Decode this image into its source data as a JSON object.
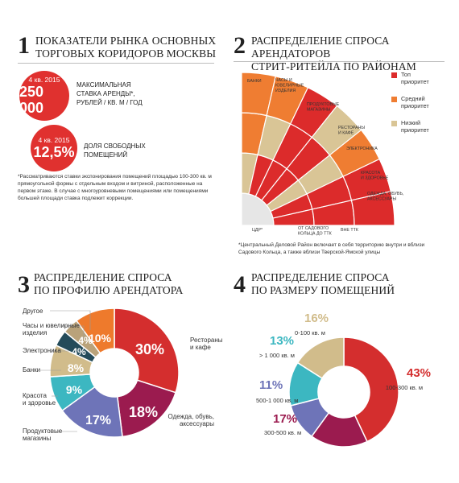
{
  "sections": [
    {
      "number": "1",
      "title": [
        "ПОКАЗАТЕЛИ РЫНКА ОСНОВНЫХ",
        "ТОРГОВЫХ КОРИДОРОВ МОСКВЫ"
      ]
    },
    {
      "number": "2",
      "title": [
        "РАСПРЕДЕЛЕНИЕ СПРОСА АРЕНДАТОРОВ",
        "СТРИТ-РИТЕЙЛА ПО РАЙОНАМ"
      ]
    },
    {
      "number": "3",
      "title": [
        "РАСПРЕДЕЛЕНИЕ СПРОСА",
        "ПО ПРОФИЛЮ АРЕНДАТОРА"
      ]
    },
    {
      "number": "4",
      "title": [
        "РАСПРЕДЕЛЕНИЕ СПРОСА",
        "ПО РАЗМЕРУ ПОМЕЩЕНИЙ"
      ]
    }
  ],
  "indicators": [
    {
      "period": "4 кв. 2015",
      "value": "250 000",
      "label": [
        "МАКСИМАЛЬНАЯ",
        "СТАВКА АРЕНДЫ*,",
        "РУБЛЕЙ / КВ. М / ГОД"
      ]
    },
    {
      "period": "4 кв. 2015",
      "value": "12,5%",
      "label": [
        "ДОЛЯ СВОБОДНЫХ",
        "ПОМЕЩЕНИЙ"
      ]
    }
  ],
  "indicator_note": [
    "*Рассматриваются ставки экспонирования помещений площадью 100-300 кв. м",
    "прямоугольной формы с отдельным входом и витриной, расположенные на",
    "первом этаже. В случае с многоуровневыми помещениями или помещениями",
    "большей площади ставка подлежит коррекции."
  ],
  "district_note": [
    "*Центральный Деловой Район включает в себя территорию внутри и вблизи",
    "Садового Кольца, а также вблизи Тверской-Ямской улицы"
  ],
  "colors": {
    "accent": "#e0312f",
    "top": "#dc2b2b",
    "medium": "#ef7d32",
    "low": "#d9c596",
    "grey": "#dcdcdc"
  },
  "chart_data": [
    {
      "type": "heatmap",
      "title": "РАСПРЕДЕЛЕНИЕ СПРОСА АРЕНДАТОРОВ СТРИТ-РИТЕЙЛА ПО РАЙОНАМ",
      "districts": [
        "ЦДР*",
        "ОТ САДОВОГО КОЛЬЦА ДО ТТК",
        "ВНЕ ТТК"
      ],
      "categories": [
        "БАНКИ",
        "ЧАСЫ И ЮВЕЛИРНЫЕ ИЗДЕЛИЯ",
        "ПРОДУКТОВЫЕ МАГАЗИНЫ",
        "РЕСТОРАНЫ И КАФЕ",
        "ЭЛЕКТРОНИКА",
        "КРАСОТА И ЗДОРОВЬЕ",
        "ОДЕЖДА, ОБУВЬ, АКСЕССУАРЫ"
      ],
      "legend": [
        {
          "key": "top",
          "label": [
            "Топ",
            "приоритет"
          ]
        },
        {
          "key": "medium",
          "label": [
            "Средний",
            "приоритет"
          ]
        },
        {
          "key": "low",
          "label": [
            "Низкий",
            "приоритет"
          ]
        }
      ],
      "matrix": [
        [
          "low",
          "top",
          "top",
          "top",
          "low",
          "top",
          "top"
        ],
        [
          "medium",
          "low",
          "top",
          "top",
          "low",
          "top",
          "top"
        ],
        [
          "medium",
          "medium",
          "top",
          "low",
          "medium",
          "top",
          "top"
        ]
      ]
    },
    {
      "type": "pie",
      "title": "РАСПРЕДЕЛЕНИЕ СПРОСА ПО ПРОФИЛЮ АРЕНДАТОРА",
      "slices": [
        {
          "name": "Рестораны и кафе",
          "value": 30,
          "label": "30%",
          "color": "#d42e2e"
        },
        {
          "name": "Одежда, обувь, аксессуары",
          "value": 18,
          "label": "18%",
          "color": "#9b1b4f"
        },
        {
          "name": "Продуктовые магазины",
          "value": 17,
          "label": "17%",
          "color": "#6e74b8"
        },
        {
          "name": "Красота и здоровье",
          "value": 9,
          "label": "9%",
          "color": "#3cb7c1"
        },
        {
          "name": "Банки",
          "value": 8,
          "label": "8%",
          "color": "#d1bc8b"
        },
        {
          "name": "Электроника",
          "value": 4,
          "label": "4%",
          "color": "#244b5a"
        },
        {
          "name": "Часы и ювелирные изделия",
          "value": 4,
          "label": "4%",
          "color": "#b9a27a"
        },
        {
          "name": "Другое",
          "value": 10,
          "label": "10%",
          "color": "#ee7a2c"
        }
      ]
    },
    {
      "type": "pie",
      "title": "РАСПРЕДЕЛЕНИЕ СПРОСА ПО РАЗМЕРУ ПОМЕЩЕНИЙ",
      "slices": [
        {
          "name": "100-300 кв. м",
          "value": 43,
          "label": "43%",
          "color": "#d42e2e"
        },
        {
          "name": "300-500 кв. м",
          "value": 17,
          "label": "17%",
          "color": "#9b1b4f"
        },
        {
          "name": "500-1 000 кв. м",
          "value": 11,
          "label": "11%",
          "color": "#6e74b8"
        },
        {
          "name": "> 1 000 кв. м",
          "value": 13,
          "label": "13%",
          "color": "#3cb7c1"
        },
        {
          "name": "0-100 кв. м",
          "value": 16,
          "label": "16%",
          "color": "#d1bc8b"
        }
      ]
    }
  ]
}
